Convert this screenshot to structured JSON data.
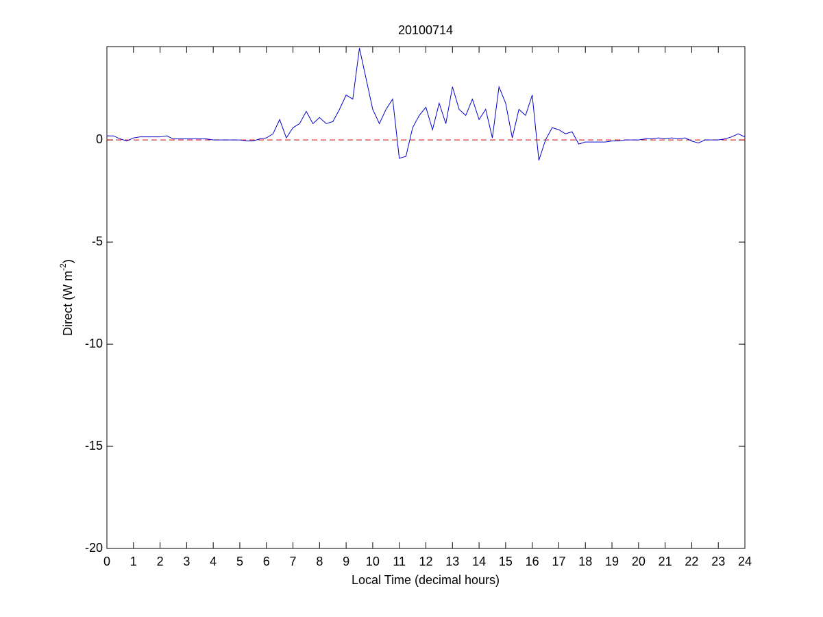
{
  "chart_data": {
    "type": "line",
    "title": "20100714",
    "xlabel": "Local Time (decimal hours)",
    "ylabel": {
      "text": "Direct (W m",
      "sup": "-2",
      "tail": ")"
    },
    "x": [
      0,
      0.25,
      0.5,
      0.75,
      1,
      1.25,
      1.5,
      1.75,
      2,
      2.25,
      2.5,
      2.75,
      3,
      3.25,
      3.5,
      3.75,
      4,
      4.25,
      4.5,
      4.75,
      5,
      5.25,
      5.5,
      5.75,
      6,
      6.25,
      6.5,
      6.75,
      7,
      7.25,
      7.5,
      7.75,
      8,
      8.25,
      8.5,
      8.75,
      9,
      9.25,
      9.5,
      9.75,
      10,
      10.25,
      10.5,
      10.75,
      11,
      11.25,
      11.5,
      11.75,
      12,
      12.25,
      12.5,
      12.75,
      13,
      13.25,
      13.5,
      13.75,
      14,
      14.25,
      14.5,
      14.75,
      15,
      15.25,
      15.5,
      15.75,
      16,
      16.25,
      16.5,
      16.75,
      17,
      17.25,
      17.5,
      17.75,
      18,
      18.25,
      18.5,
      18.75,
      19,
      19.25,
      19.5,
      19.75,
      20,
      20.25,
      20.5,
      20.75,
      21,
      21.25,
      21.5,
      21.75,
      22,
      22.25,
      22.5,
      22.75,
      23,
      23.25,
      23.5,
      23.75,
      24
    ],
    "series": [
      {
        "name": "Direct",
        "color": "#0000cc",
        "values": [
          0.2,
          0.2,
          0.05,
          -0.05,
          0.1,
          0.15,
          0.15,
          0.15,
          0.15,
          0.2,
          0.05,
          0.05,
          0.05,
          0.05,
          0.05,
          0.05,
          0,
          0,
          0,
          0,
          0,
          -0.05,
          -0.05,
          0.05,
          0.1,
          0.3,
          1.0,
          0.1,
          0.6,
          0.8,
          1.4,
          0.8,
          1.1,
          0.8,
          0.9,
          1.5,
          2.2,
          2.0,
          4.5,
          3.0,
          1.5,
          0.8,
          1.5,
          2.0,
          -0.9,
          -0.8,
          0.6,
          1.2,
          1.6,
          0.5,
          1.8,
          0.8,
          2.6,
          1.5,
          1.2,
          2.0,
          1.0,
          1.5,
          0.1,
          2.6,
          1.8,
          0.1,
          1.5,
          1.2,
          2.2,
          -1.0,
          0,
          0.6,
          0.5,
          0.3,
          0.4,
          -0.2,
          -0.1,
          -0.1,
          -0.1,
          -0.1,
          -0.05,
          -0.05,
          0,
          0,
          0,
          0.05,
          0.05,
          0.1,
          0.05,
          0.1,
          0.05,
          0.1,
          -0.05,
          -0.15,
          0,
          0,
          0,
          0.05,
          0.15,
          0.3,
          0.15
        ]
      }
    ],
    "reference_line": {
      "value": 0,
      "color": "#cc0000",
      "dashed": true
    },
    "xlim": [
      0,
      24
    ],
    "ylim": [
      -20,
      4.57
    ],
    "xticks": [
      0,
      1,
      2,
      3,
      4,
      5,
      6,
      7,
      8,
      9,
      10,
      11,
      12,
      13,
      14,
      15,
      16,
      17,
      18,
      19,
      20,
      21,
      22,
      23,
      24
    ],
    "yticks": [
      -20,
      -15,
      -10,
      -5,
      0
    ],
    "grid": false
  }
}
